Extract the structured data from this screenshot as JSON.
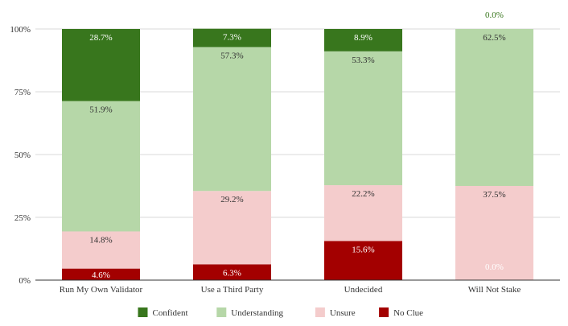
{
  "chart_data": {
    "type": "bar",
    "stacked": true,
    "title": "",
    "xlabel": "",
    "ylabel": "",
    "ylim": [
      0,
      100
    ],
    "yticks": [
      0,
      25,
      50,
      75,
      100
    ],
    "ytick_labels": [
      "0%",
      "25%",
      "50%",
      "75%",
      "100%"
    ],
    "grid": true,
    "legend_position": "bottom",
    "categories": [
      "Run My Own Validator",
      "Use a Third Party",
      "Undecided",
      "Will Not Stake"
    ],
    "series": [
      {
        "name": "No Clue",
        "color": "#a30000",
        "label_color": "#ffffff",
        "values": [
          4.6,
          6.3,
          15.6,
          0.0
        ],
        "labels": [
          "4.6%",
          "6.3%",
          "15.6%",
          "0.0%"
        ]
      },
      {
        "name": "Unsure",
        "color": "#f4cccc",
        "label_color": "#333333",
        "values": [
          14.8,
          29.2,
          22.2,
          37.5
        ],
        "labels": [
          "14.8%",
          "29.2%",
          "22.2%",
          "37.5%"
        ]
      },
      {
        "name": "Understanding",
        "color": "#b6d7a8",
        "label_color": "#333333",
        "values": [
          51.9,
          57.3,
          53.3,
          62.5
        ],
        "labels": [
          "51.9%",
          "57.3%",
          "53.3%",
          "62.5%"
        ]
      },
      {
        "name": "Confident",
        "color": "#38761d",
        "label_color": "#ffffff",
        "values": [
          28.7,
          7.3,
          8.9,
          0.0
        ],
        "labels": [
          "28.7%",
          "7.3%",
          "8.9%",
          "0.0%"
        ]
      }
    ],
    "legend_order": [
      "Confident",
      "Understanding",
      "Unsure",
      "No Clue"
    ]
  }
}
